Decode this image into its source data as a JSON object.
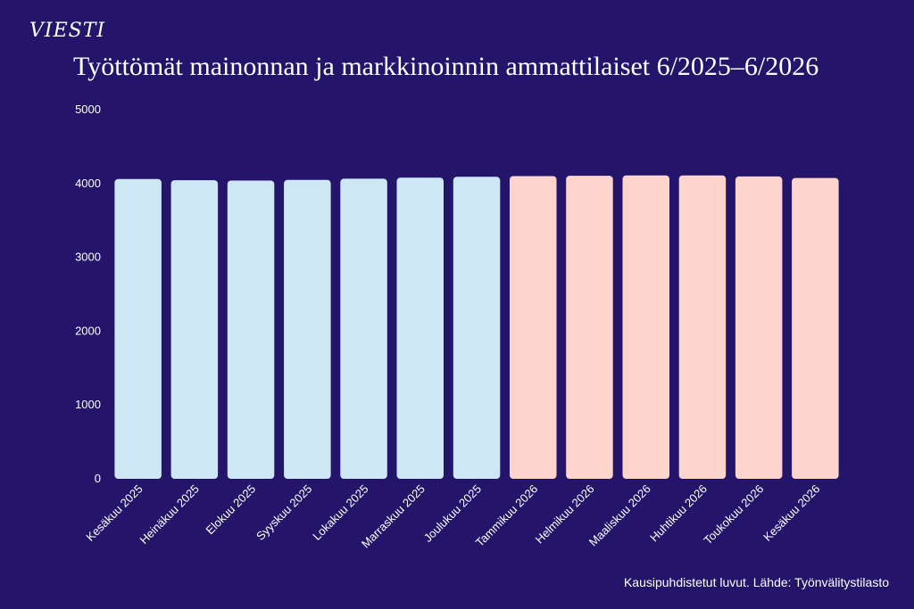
{
  "brand": "VIESTI",
  "chart_data": {
    "type": "bar",
    "title": "Työttömät mainonnan ja markkinoinnin ammattilaiset 6/2025–6/2026",
    "categories": [
      "Kesäkuu 2025",
      "Heinäkuu 2025",
      "Elokuu 2025",
      "Syyskuu 2025",
      "Lokakuu 2025",
      "Marraskuu 2025",
      "Joulukuu 2025",
      "Tammikuu 2026",
      "Helmikuu 2026",
      "Maaliskuu 2026",
      "Huhtikuu 2026",
      "Toukokuu 2026",
      "Kesäkuu 2026"
    ],
    "values": [
      4060,
      4045,
      4040,
      4050,
      4065,
      4080,
      4090,
      4100,
      4105,
      4110,
      4110,
      4095,
      4075
    ],
    "ylim": [
      0,
      5000
    ],
    "yticks": [
      0,
      1000,
      2000,
      3000,
      4000,
      5000
    ],
    "xlabel": "",
    "ylabel": "",
    "grid": false,
    "colors": {
      "background": "#24156b",
      "bar_2025": "#cde8f4",
      "bar_2026": "#fdd5cd"
    },
    "note": "Kausipuhdistetut luvut. Lähde: Työnvälitystilasto"
  }
}
